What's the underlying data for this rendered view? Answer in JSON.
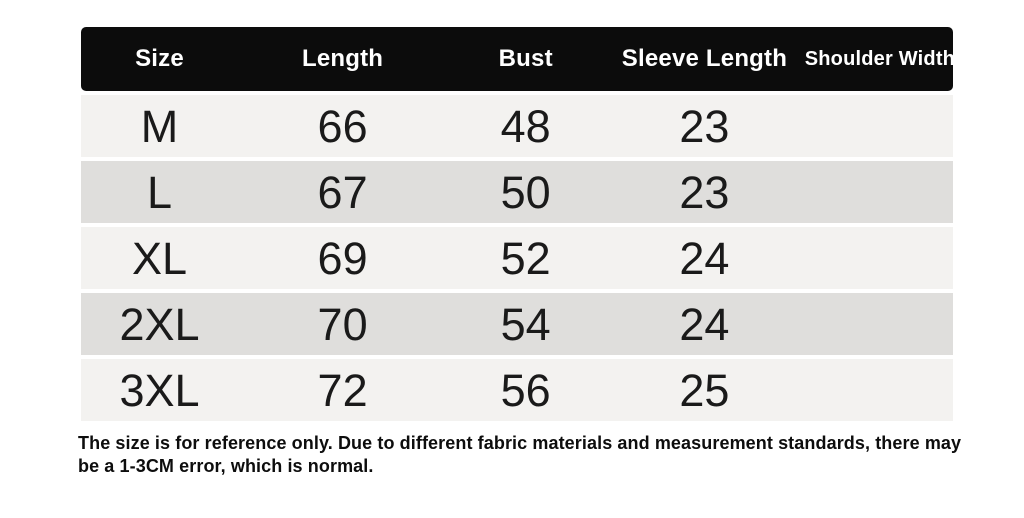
{
  "chart_data": {
    "type": "table",
    "columns": [
      "Size",
      "Length",
      "Bust",
      "Sleeve Length",
      "Shoulder Width"
    ],
    "rows": [
      [
        "M",
        "66",
        "48",
        "23",
        ""
      ],
      [
        "L",
        "67",
        "50",
        "23",
        ""
      ],
      [
        "XL",
        "69",
        "52",
        "24",
        ""
      ],
      [
        "2XL",
        "70",
        "54",
        "24",
        ""
      ],
      [
        "3XL",
        "72",
        "56",
        "25",
        ""
      ]
    ],
    "title": "",
    "note": "The size is for reference only. Due to different fabric materials and measurement standards, there may be a 1-3CM error, which is normal."
  },
  "note": {
    "lines": [
      "The size is for reference only. Due to different fabric materials and measurement standards, there may",
      "be a 1-3CM error, which is normal."
    ]
  },
  "colors": {
    "page_bg": "#ffffff",
    "header_bg": "#0c0c0c",
    "header_text": "#ffffff",
    "row_light": "#f3f2f0",
    "row_dark": "#dfdedc",
    "cell_text": "#1a1a1a",
    "note_text": "#0d0d0d"
  }
}
